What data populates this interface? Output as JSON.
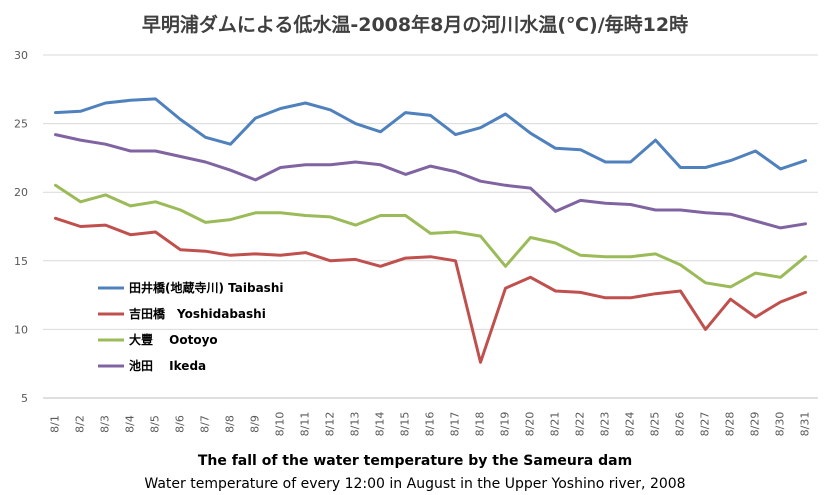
{
  "chart_data": {
    "type": "line",
    "title": "早明浦ダムによる低水温-2008年8月の河川水温(℃)/毎時12時",
    "xlabel": "",
    "ylabel": "",
    "ylim": [
      5,
      30
    ],
    "yticks": [
      5,
      10,
      15,
      20,
      25,
      30
    ],
    "grid": "horizontal",
    "legend_position": "center-left",
    "categories": [
      "8/1",
      "8/2",
      "8/3",
      "8/4",
      "8/5",
      "8/6",
      "8/7",
      "8/8",
      "8/9",
      "8/10",
      "8/11",
      "8/12",
      "8/13",
      "8/14",
      "8/15",
      "8/16",
      "8/17",
      "8/18",
      "8/19",
      "8/20",
      "8/21",
      "8/22",
      "8/23",
      "8/24",
      "8/25",
      "8/26",
      "8/27",
      "8/28",
      "8/29",
      "8/30",
      "8/31"
    ],
    "series": [
      {
        "name": "田井橋(地蔵寺川) Taibashi",
        "color": "#4f81bd",
        "values": [
          25.8,
          25.9,
          26.5,
          26.7,
          26.8,
          25.3,
          24.0,
          23.5,
          25.4,
          26.1,
          26.5,
          26.0,
          25.0,
          24.4,
          25.8,
          25.6,
          24.2,
          24.7,
          25.7,
          24.3,
          23.2,
          23.1,
          22.2,
          22.2,
          23.8,
          21.8,
          21.8,
          22.3,
          23.0,
          21.7,
          22.3
        ]
      },
      {
        "name": "吉田橋　Yoshidabashi",
        "color": "#c0504d",
        "values": [
          18.1,
          17.5,
          17.6,
          16.9,
          17.1,
          15.8,
          15.7,
          15.4,
          15.5,
          15.4,
          15.6,
          15.0,
          15.1,
          14.6,
          15.2,
          15.3,
          15.0,
          7.6,
          13.0,
          13.8,
          12.8,
          12.7,
          12.3,
          12.3,
          12.6,
          12.8,
          10.0,
          12.2,
          10.9,
          12.0,
          12.7
        ]
      },
      {
        "name": "大豐　 Ootoyo",
        "color": "#9bbb59",
        "values": [
          20.5,
          19.3,
          19.8,
          19.0,
          19.3,
          18.7,
          17.8,
          18.0,
          18.5,
          18.5,
          18.3,
          18.2,
          17.6,
          18.3,
          18.3,
          17.0,
          17.1,
          16.8,
          14.6,
          16.7,
          16.3,
          15.4,
          15.3,
          15.3,
          15.5,
          14.7,
          13.4,
          13.1,
          14.1,
          13.8,
          15.3
        ]
      },
      {
        "name": "池田　 Ikeda",
        "color": "#8064a2",
        "values": [
          24.2,
          23.8,
          23.5,
          23.0,
          23.0,
          22.6,
          22.2,
          21.6,
          20.9,
          21.8,
          22.0,
          22.0,
          22.2,
          22.0,
          21.3,
          21.9,
          21.5,
          20.8,
          20.5,
          20.3,
          18.6,
          19.4,
          19.2,
          19.1,
          18.7,
          18.7,
          18.5,
          18.4,
          17.9,
          17.4,
          17.7
        ]
      }
    ]
  },
  "captions": {
    "line1": "The fall of the water temperature by the Sameura dam",
    "line2": "Water temperature of every 12:00 in August in the Upper Yoshino river, 2008"
  }
}
